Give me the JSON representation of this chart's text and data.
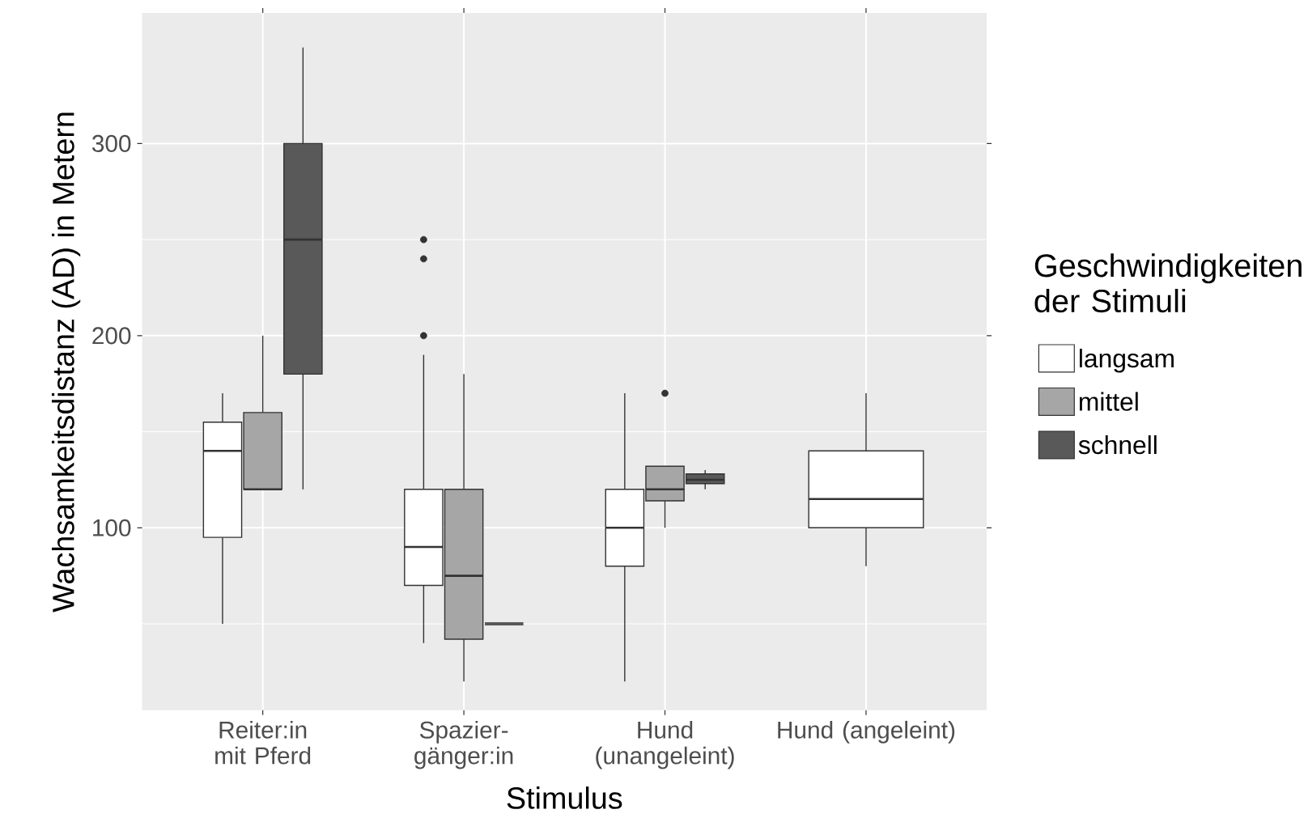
{
  "chart_data": {
    "type": "box",
    "xlabel": "Stimulus",
    "ylabel": "Wachsamkeitsdistanz (AD) in Metern",
    "legend_title": "Geschwindigkeiten der Stimuli",
    "categories": [
      "Reiter:in mit Pferd",
      "Spazier-gänger:in",
      "Hund (unangeleint)",
      "Hund (angeleint)"
    ],
    "ylim": [
      5,
      368
    ],
    "yticks": [
      {
        "value": 50,
        "label": null
      },
      100,
      {
        "value": 150,
        "label": null
      },
      200,
      {
        "value": 250,
        "label": null
      },
      300
    ],
    "grid": true,
    "legend": "right",
    "series": [
      {
        "name": "langsam",
        "color": "#ffffff",
        "boxes": [
          {
            "low": 50,
            "q1": 95,
            "median": 140,
            "q3": 155,
            "high": 170
          },
          {
            "low": 40,
            "q1": 70,
            "median": 90,
            "q3": 120,
            "high": 190,
            "outliers": [
              200,
              240,
              250
            ]
          },
          {
            "low": 20,
            "q1": 80,
            "median": 100,
            "q3": 120,
            "high": 170
          },
          {
            "low": 80,
            "q1": 100,
            "median": 115,
            "q3": 140,
            "high": 170
          }
        ]
      },
      {
        "name": "mittel",
        "color": "#a6a6a6",
        "boxes": [
          {
            "low": 120,
            "q1": 120,
            "median": 120,
            "q3": 160,
            "high": 200
          },
          {
            "low": 20,
            "q1": 42,
            "median": 75,
            "q3": 120,
            "high": 180
          },
          {
            "low": 100,
            "q1": 114,
            "median": 120,
            "q3": 132,
            "high": 132,
            "outliers": [
              170
            ]
          },
          null
        ]
      },
      {
        "name": "schnell",
        "color": "#595959",
        "boxes": [
          {
            "low": 120,
            "q1": 180,
            "median": 250,
            "q3": 300,
            "high": 350
          },
          {
            "low": 50,
            "q1": 50,
            "median": 50,
            "q3": 50,
            "high": 50
          },
          {
            "low": 120,
            "q1": 123,
            "median": 125,
            "q3": 128,
            "high": 130
          },
          null
        ]
      }
    ]
  }
}
